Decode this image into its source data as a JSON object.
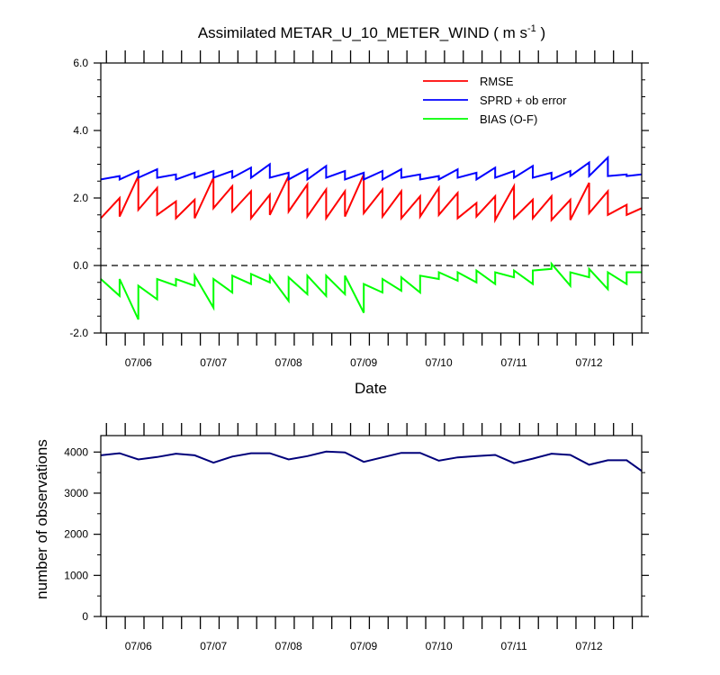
{
  "chart_data": [
    {
      "type": "line",
      "title_main": "Assimilated METAR_U_10_METER_WIND ( m s",
      "title_sup": "-1",
      "title_end": " )",
      "xlabel": "Date",
      "ylabel": "",
      "xlim": [
        0,
        72
      ],
      "ylim": [
        -2.0,
        6.0
      ],
      "yticks": [
        -2.0,
        0.0,
        2.0,
        4.0,
        6.0
      ],
      "ytick_labels": [
        "-2.0",
        "0.0",
        "2.0",
        "4.0",
        "6.0"
      ],
      "xtick_positions": [
        5,
        15,
        25,
        35,
        45,
        55,
        65
      ],
      "xtick_labels": [
        "07/06",
        "07/07",
        "07/08",
        "07/09",
        "07/10",
        "07/11",
        "07/12"
      ],
      "x_minor_tick_count": 29,
      "reference_line": 0.0,
      "legend_position": "top-right",
      "series": [
        {
          "name": "RMSE",
          "color": "#ff0000",
          "x": [
            0,
            2.5,
            2.5,
            5,
            5,
            7.5,
            7.5,
            10,
            10,
            12.5,
            12.5,
            15,
            15,
            17.5,
            17.5,
            20,
            20,
            22.5,
            22.5,
            25,
            25,
            27.5,
            27.5,
            30,
            30,
            32.5,
            32.5,
            35,
            35,
            37.5,
            37.5,
            40,
            40,
            42.5,
            42.5,
            45,
            45,
            47.5,
            47.5,
            50,
            50,
            52.5,
            52.5,
            55,
            55,
            57.5,
            57.5,
            60,
            60,
            62.5,
            62.5,
            65,
            65,
            67.5,
            67.5,
            70,
            70,
            72
          ],
          "y": [
            1.4,
            2.0,
            1.45,
            2.65,
            1.65,
            2.3,
            1.5,
            1.9,
            1.4,
            1.95,
            1.4,
            2.6,
            1.7,
            2.35,
            1.6,
            2.2,
            1.4,
            2.1,
            1.5,
            2.65,
            1.6,
            2.4,
            1.45,
            2.25,
            1.4,
            2.2,
            1.45,
            2.7,
            1.55,
            2.25,
            1.45,
            2.2,
            1.4,
            2.05,
            1.45,
            2.3,
            1.5,
            2.15,
            1.4,
            1.85,
            1.45,
            2.05,
            1.35,
            2.35,
            1.4,
            1.95,
            1.4,
            2.05,
            1.35,
            1.95,
            1.35,
            2.45,
            1.55,
            2.2,
            1.5,
            1.8,
            1.5,
            1.7
          ]
        },
        {
          "name": "SPRD + ob error",
          "color": "#0000ff",
          "x": [
            0,
            2.5,
            2.5,
            5,
            5,
            7.5,
            7.5,
            10,
            10,
            12.5,
            12.5,
            15,
            15,
            17.5,
            17.5,
            20,
            20,
            22.5,
            22.5,
            25,
            25,
            27.5,
            27.5,
            30,
            30,
            32.5,
            32.5,
            35,
            35,
            37.5,
            37.5,
            40,
            40,
            42.5,
            42.5,
            45,
            45,
            47.5,
            47.5,
            50,
            50,
            52.5,
            52.5,
            55,
            55,
            57.5,
            57.5,
            60,
            60,
            62.5,
            62.5,
            65,
            65,
            67.5,
            67.5,
            70,
            70,
            72
          ],
          "y": [
            2.55,
            2.65,
            2.55,
            2.8,
            2.6,
            2.85,
            2.6,
            2.7,
            2.55,
            2.75,
            2.6,
            2.8,
            2.6,
            2.8,
            2.6,
            2.9,
            2.6,
            3.0,
            2.6,
            2.75,
            2.55,
            2.85,
            2.55,
            2.95,
            2.6,
            2.8,
            2.55,
            2.75,
            2.55,
            2.8,
            2.55,
            2.85,
            2.6,
            2.7,
            2.55,
            2.65,
            2.55,
            2.85,
            2.6,
            2.75,
            2.55,
            2.9,
            2.6,
            2.8,
            2.6,
            2.95,
            2.6,
            2.75,
            2.55,
            2.8,
            2.65,
            3.05,
            2.65,
            3.2,
            2.65,
            2.7,
            2.65,
            2.7
          ]
        },
        {
          "name": "BIAS (O-F)",
          "color": "#00ff00",
          "x": [
            0,
            2.5,
            2.5,
            5,
            5,
            7.5,
            7.5,
            10,
            10,
            12.5,
            12.5,
            15,
            15,
            17.5,
            17.5,
            20,
            20,
            22.5,
            22.5,
            25,
            25,
            27.5,
            27.5,
            30,
            30,
            32.5,
            32.5,
            35,
            35,
            37.5,
            37.5,
            40,
            40,
            42.5,
            42.5,
            45,
            45,
            47.5,
            47.5,
            50,
            50,
            52.5,
            52.5,
            55,
            55,
            57.5,
            57.5,
            60,
            60,
            62.5,
            62.5,
            65,
            65,
            67.5,
            67.5,
            70,
            70,
            72
          ],
          "y": [
            -0.4,
            -0.9,
            -0.4,
            -1.6,
            -0.6,
            -1.0,
            -0.4,
            -0.6,
            -0.4,
            -0.6,
            -0.3,
            -1.25,
            -0.4,
            -0.8,
            -0.3,
            -0.55,
            -0.25,
            -0.5,
            -0.3,
            -1.05,
            -0.35,
            -0.85,
            -0.3,
            -0.9,
            -0.3,
            -0.85,
            -0.3,
            -1.4,
            -0.55,
            -0.8,
            -0.4,
            -0.75,
            -0.35,
            -0.8,
            -0.3,
            -0.4,
            -0.2,
            -0.45,
            -0.2,
            -0.5,
            -0.15,
            -0.55,
            -0.2,
            -0.35,
            -0.15,
            -0.55,
            -0.15,
            -0.1,
            0.05,
            -0.6,
            -0.2,
            -0.35,
            -0.1,
            -0.7,
            -0.2,
            -0.55,
            -0.2,
            -0.2
          ]
        }
      ]
    },
    {
      "type": "line",
      "title": "",
      "xlabel": "",
      "ylabel": "number of observations",
      "xlim": [
        0,
        72
      ],
      "ylim": [
        0,
        4400
      ],
      "yticks": [
        0,
        1000,
        2000,
        3000,
        4000
      ],
      "ytick_labels": [
        "0",
        "1000",
        "2000",
        "3000",
        "4000"
      ],
      "xtick_positions": [
        5,
        15,
        25,
        35,
        45,
        55,
        65
      ],
      "xtick_labels": [
        "07/06",
        "07/07",
        "07/08",
        "07/09",
        "07/10",
        "07/11",
        "07/12"
      ],
      "x_minor_tick_count": 29,
      "series": [
        {
          "name": "",
          "color": "#00007a",
          "x": [
            0,
            2.5,
            5,
            7.5,
            10,
            12.5,
            15,
            17.5,
            20,
            22.5,
            25,
            27.5,
            30,
            32.5,
            35,
            37.5,
            40,
            42.5,
            45,
            47.5,
            50,
            52.5,
            55,
            57.5,
            60,
            62.5,
            65,
            67.5,
            70,
            72
          ],
          "y": [
            3920,
            3970,
            3820,
            3880,
            3960,
            3920,
            3740,
            3890,
            3970,
            3970,
            3820,
            3900,
            4010,
            3990,
            3760,
            3870,
            3980,
            3980,
            3790,
            3870,
            3900,
            3930,
            3730,
            3840,
            3960,
            3930,
            3690,
            3800,
            3800,
            3540
          ]
        }
      ]
    }
  ]
}
